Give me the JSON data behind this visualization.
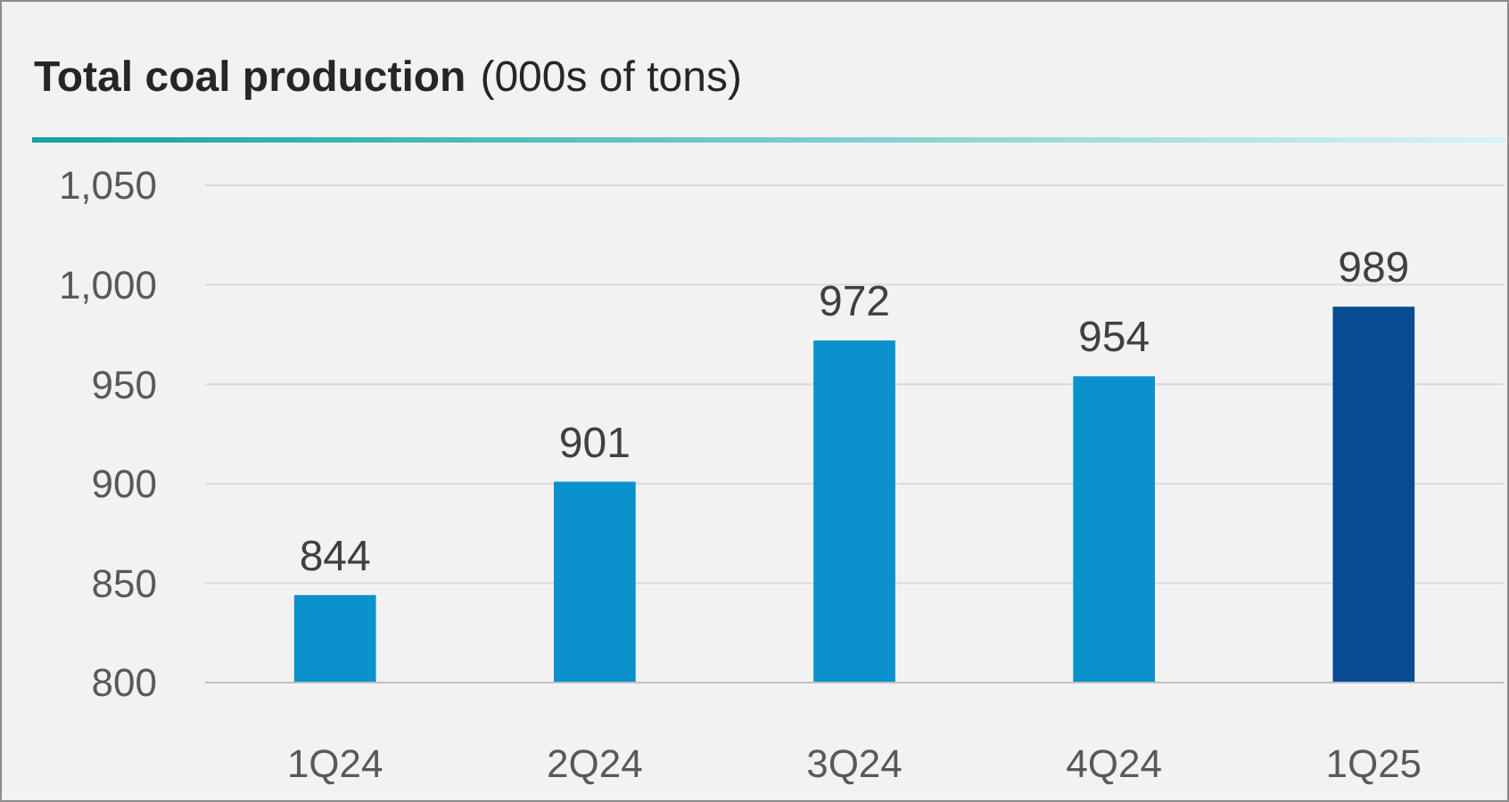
{
  "chart_data": {
    "type": "bar",
    "title": "Total coal production",
    "subtitle": "(000s of tons)",
    "categories": [
      "1Q24",
      "2Q24",
      "3Q24",
      "4Q24",
      "1Q25"
    ],
    "values": [
      844,
      901,
      972,
      954,
      989
    ],
    "colors": [
      "#0b92cc",
      "#0b92cc",
      "#0b92cc",
      "#0b92cc",
      "#074b93"
    ],
    "ylim": [
      800,
      1050
    ],
    "yticks": [
      {
        "value": 800,
        "label": "800"
      },
      {
        "value": 850,
        "label": "850"
      },
      {
        "value": 900,
        "label": "900"
      },
      {
        "value": 950,
        "label": "950"
      },
      {
        "value": 1000,
        "label": "1,000"
      },
      {
        "value": 1050,
        "label": "1,050"
      }
    ],
    "grid": "y",
    "data_labels": true
  }
}
